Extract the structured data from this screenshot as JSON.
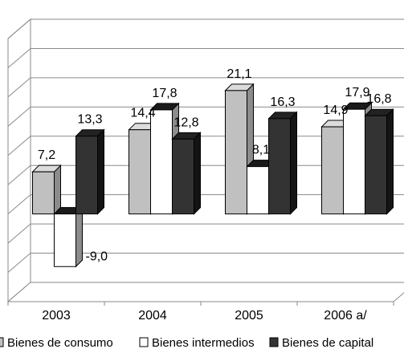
{
  "chart_data": {
    "type": "bar",
    "categories": [
      "2003",
      "2004",
      "2005",
      "2006 a/"
    ],
    "series": [
      {
        "name": "Bienes de consumo",
        "values": [
          7.2,
          14.4,
          21.1,
          14.9
        ],
        "color": "#c0c0c0"
      },
      {
        "name": "Bienes intermedios",
        "values": [
          -9.0,
          17.8,
          8.1,
          17.9
        ],
        "color": "#ffffff"
      },
      {
        "name": "Bienes de capital",
        "values": [
          13.3,
          12.8,
          16.3,
          16.8
        ],
        "color": "#333333"
      }
    ],
    "data_labels": [
      [
        "7,2",
        "14,4",
        "21,1",
        "14,9"
      ],
      [
        "-9,0",
        "17,8",
        "8,1",
        "17,9"
      ],
      [
        "13,3",
        "12,8",
        "16,3",
        "16,8"
      ]
    ],
    "ylim": [
      -15,
      30
    ],
    "grid": true,
    "legend_position": "bottom",
    "legend_labels": [
      "Bienes de consumo",
      "Bienes intermedios",
      "Bienes de capital"
    ]
  }
}
